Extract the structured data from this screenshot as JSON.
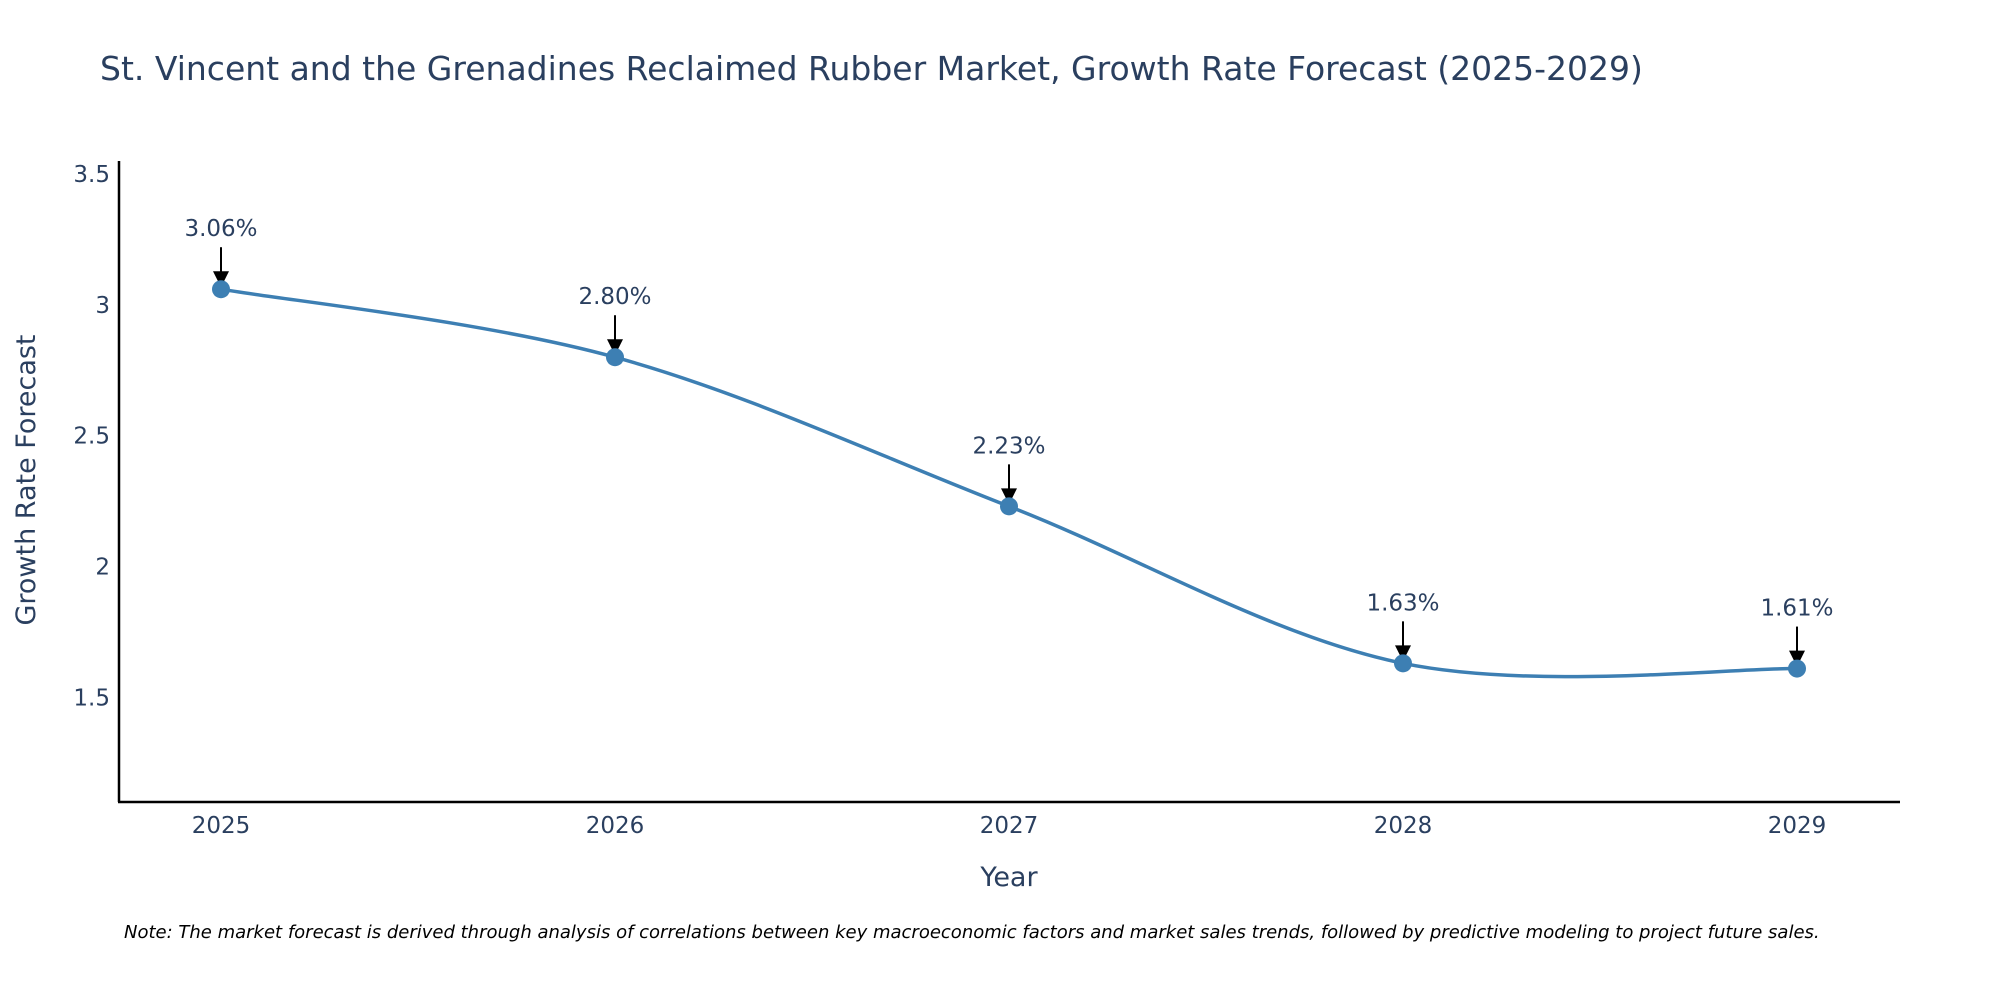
{
  "chart_data": {
    "type": "line",
    "title": "St. Vincent and the Grenadines Reclaimed Rubber Market, Growth Rate Forecast (2025-2029)",
    "xlabel": "Year",
    "ylabel": "Growth Rate Forecast",
    "categories": [
      "2025",
      "2026",
      "2027",
      "2028",
      "2029"
    ],
    "series": [
      {
        "name": "Growth Rate Forecast",
        "values": [
          3.06,
          2.8,
          2.23,
          1.63,
          1.61
        ],
        "labels": [
          "3.06%",
          "2.80%",
          "2.23%",
          "1.63%",
          "1.61%"
        ],
        "color": "#3d7fb3"
      }
    ],
    "ylim": [
      1.1,
      3.55
    ],
    "yticks": [
      1.5,
      2,
      2.5,
      3,
      3.5
    ],
    "ytick_labels": [
      "1.5",
      "2",
      "2.5",
      "3",
      "3.5"
    ],
    "grid": false,
    "line_shape": "spline",
    "annotation_arrows": true
  },
  "note": "Note: The market forecast is derived through analysis of correlations between key macroeconomic factors and market sales trends, followed by predictive modeling to project future sales.",
  "colors": {
    "text": "#2a3f5f",
    "axis": "#000000",
    "line": "#3d7fb3",
    "arrow": "#000000"
  }
}
